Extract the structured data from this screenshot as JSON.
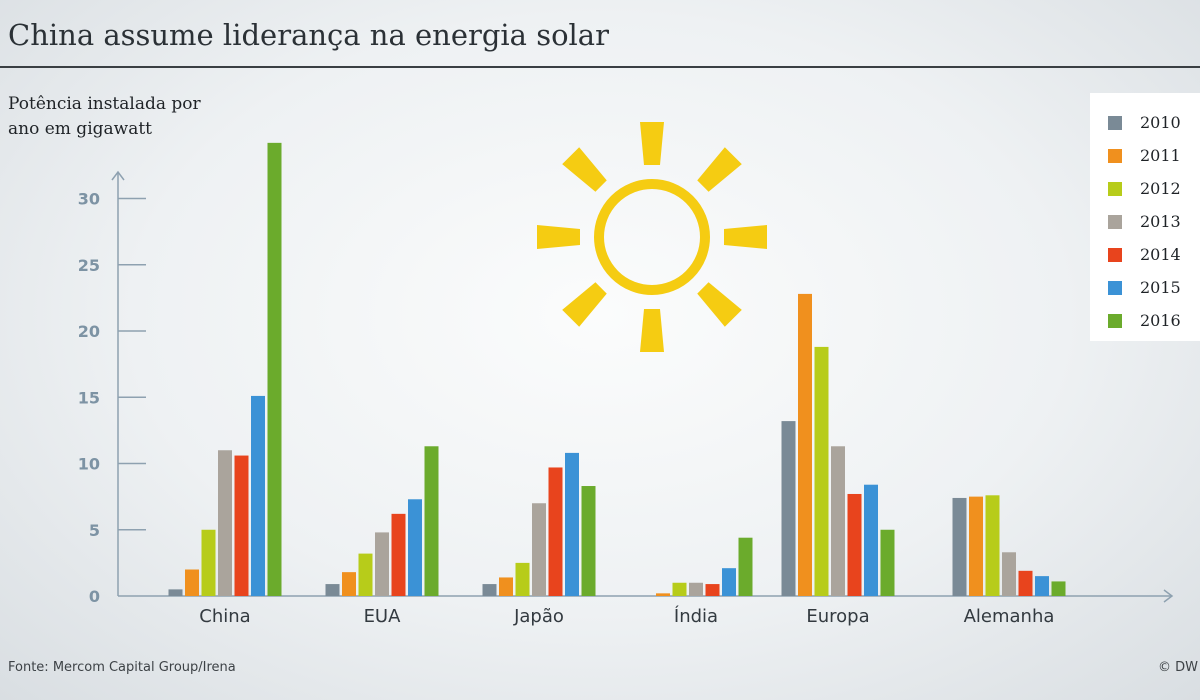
{
  "title": "China assume liderança na energia solar",
  "source": "Fonte: Mercom Capital Group/Irena",
  "credit": "© DW",
  "sun_icon": "sun-icon",
  "chart_data": {
    "type": "bar",
    "title": "China assume liderança na energia solar",
    "ylabel_lines": [
      "Potência instalada por",
      "ano em gigawatt"
    ],
    "xlabel": "",
    "ylim": [
      0,
      33
    ],
    "yticks": [
      0,
      5,
      10,
      15,
      20,
      25,
      30
    ],
    "grid": false,
    "legend_position": "top-right",
    "categories": [
      "China",
      "EUA",
      "Japão",
      "Índia",
      "Europa",
      "Alemanha"
    ],
    "series": [
      {
        "name": "2010",
        "color": "#7a8a96",
        "values": [
          0.5,
          0.9,
          0.9,
          0.0,
          13.2,
          7.4
        ]
      },
      {
        "name": "2011",
        "color": "#f0901e",
        "values": [
          2.0,
          1.8,
          1.4,
          0.2,
          22.8,
          7.5
        ]
      },
      {
        "name": "2012",
        "color": "#b7cc1a",
        "values": [
          5.0,
          3.2,
          2.5,
          1.0,
          18.8,
          7.6
        ]
      },
      {
        "name": "2013",
        "color": "#aaa49c",
        "values": [
          11.0,
          4.8,
          7.0,
          1.0,
          11.3,
          3.3
        ]
      },
      {
        "name": "2014",
        "color": "#e8441d",
        "values": [
          10.6,
          6.2,
          9.7,
          0.9,
          7.7,
          1.9
        ]
      },
      {
        "name": "2015",
        "color": "#3b92d6",
        "values": [
          15.1,
          7.3,
          10.8,
          2.1,
          8.4,
          1.5
        ]
      },
      {
        "name": "2016",
        "color": "#6bab2c",
        "values": [
          34.2,
          11.3,
          8.3,
          4.4,
          5.0,
          1.1
        ]
      }
    ]
  }
}
